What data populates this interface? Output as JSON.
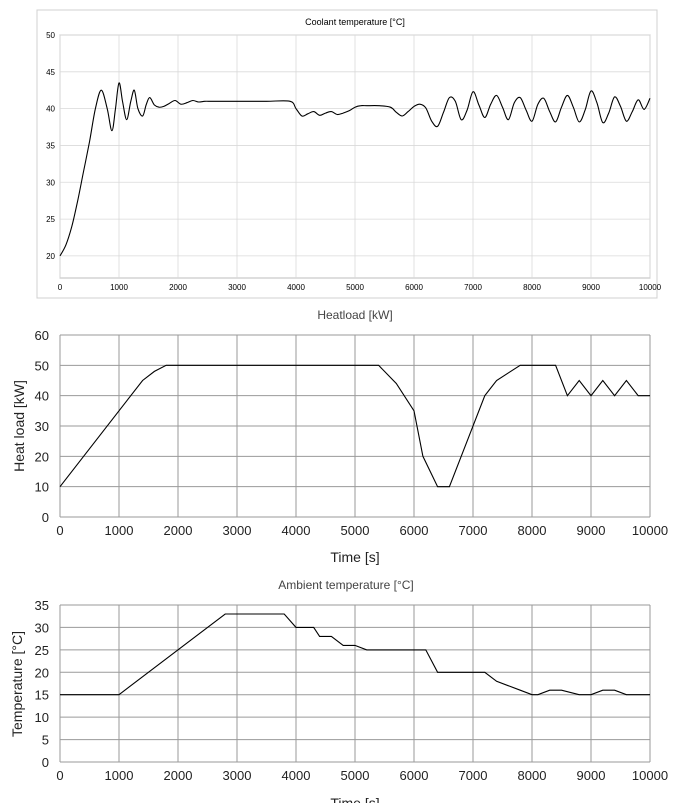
{
  "chart_data": [
    {
      "type": "line",
      "title": "Coolant temperature [°C]",
      "xlabel": "",
      "ylabel": "",
      "xlim": [
        0,
        10000
      ],
      "ylim": [
        17,
        50
      ],
      "xticks": [
        0,
        1000,
        2000,
        3000,
        4000,
        5000,
        6000,
        7000,
        8000,
        9000,
        10000
      ],
      "yticks": [
        20,
        25,
        30,
        35,
        40,
        45,
        50
      ],
      "grid": true,
      "series": [
        {
          "x": [
            0,
            100,
            200,
            300,
            400,
            500,
            600,
            700,
            800,
            880,
            940,
            1000,
            1060,
            1130,
            1200,
            1260,
            1320,
            1400,
            1460,
            1520,
            1600,
            1680,
            1760,
            1850,
            1950,
            2050,
            2150,
            2250,
            2350,
            2450,
            2550,
            2650,
            2750,
            2850,
            3000,
            3500,
            3900,
            4000,
            4100,
            4200,
            4300,
            4400,
            4500,
            4600,
            4700,
            4800,
            4900,
            5000,
            5100,
            5200,
            5400,
            5600,
            5700,
            5800,
            5900,
            6000,
            6100,
            6200,
            6300,
            6400,
            6500,
            6600,
            6700,
            6800,
            6900,
            7000,
            7100,
            7200,
            7300,
            7400,
            7500,
            7600,
            7700,
            7800,
            7900,
            8000,
            8100,
            8200,
            8300,
            8400,
            8500,
            8600,
            8700,
            8800,
            8900,
            9000,
            9100,
            9200,
            9300,
            9400,
            9500,
            9600,
            9700,
            9800,
            9900,
            10000
          ],
          "y": [
            20,
            21.5,
            24,
            27.5,
            31.5,
            35.5,
            40,
            42.5,
            40,
            37,
            40,
            43.5,
            41,
            38.5,
            41,
            42.5,
            40,
            39,
            40.5,
            41.5,
            40.5,
            40.2,
            40.3,
            40.7,
            41.1,
            40.6,
            40.8,
            41.1,
            40.9,
            41,
            41,
            41,
            41,
            41,
            41,
            41,
            41,
            40,
            39,
            39.3,
            39.6,
            39.1,
            39.4,
            39.6,
            39.2,
            39.4,
            39.7,
            40.2,
            40.4,
            40.4,
            40.4,
            40.2,
            39.5,
            39,
            39.6,
            40.3,
            40.6,
            40.1,
            38.3,
            37.6,
            39.5,
            41.5,
            41,
            38.5,
            39.8,
            42.3,
            40.5,
            38.8,
            40.6,
            41.8,
            40.2,
            38.5,
            40.8,
            41.5,
            39.8,
            38.3,
            40.6,
            41.4,
            39.6,
            38.2,
            40.2,
            41.8,
            40.2,
            38.2,
            39.8,
            42.4,
            40.8,
            38.1,
            39.4,
            41.6,
            40.3,
            38.3,
            39.6,
            41.2,
            39.9,
            41.4
          ]
        }
      ]
    },
    {
      "type": "line",
      "title": "Heatload [kW]",
      "xlabel": "Time [s]",
      "ylabel": "Heat load [kW]",
      "xlim": [
        0,
        10000
      ],
      "ylim": [
        0,
        60
      ],
      "xticks": [
        0,
        1000,
        2000,
        3000,
        4000,
        5000,
        6000,
        7000,
        8000,
        9000,
        10000
      ],
      "yticks": [
        0,
        10,
        20,
        30,
        40,
        50,
        60
      ],
      "grid": true,
      "series": [
        {
          "x": [
            0,
            1000,
            1400,
            1600,
            1800,
            5400,
            5700,
            6000,
            6150,
            6400,
            6600,
            6900,
            7200,
            7400,
            7800,
            8400,
            8600,
            8800,
            9000,
            9200,
            9400,
            9600,
            9800,
            10000
          ],
          "y": [
            10,
            35,
            45,
            48,
            50,
            50,
            44,
            35,
            20,
            10,
            10,
            25,
            40,
            45,
            50,
            50,
            40,
            45,
            40,
            45,
            40,
            45,
            40,
            40
          ]
        }
      ]
    },
    {
      "type": "line",
      "title": "Ambient temperature [°C]",
      "xlabel": "Time [s]",
      "ylabel": "Temperature [°C]",
      "xlim": [
        0,
        10000
      ],
      "ylim": [
        0,
        35
      ],
      "xticks": [
        0,
        1000,
        2000,
        3000,
        4000,
        5000,
        6000,
        7000,
        8000,
        9000,
        10000
      ],
      "yticks": [
        0,
        5,
        10,
        15,
        20,
        25,
        30,
        35
      ],
      "grid": true,
      "series": [
        {
          "x": [
            0,
            1000,
            2800,
            3800,
            4000,
            4300,
            4400,
            4600,
            4800,
            5000,
            5200,
            5400,
            6200,
            6400,
            7200,
            7400,
            7800,
            8000,
            8100,
            8300,
            8500,
            8800,
            9000,
            9200,
            9400,
            9600,
            10000
          ],
          "y": [
            15,
            15,
            33,
            33,
            30,
            30,
            28,
            28,
            26,
            26,
            25,
            25,
            25,
            20,
            20,
            18,
            16,
            15,
            15,
            16,
            16,
            15,
            15,
            16,
            16,
            15,
            15
          ]
        }
      ]
    }
  ]
}
